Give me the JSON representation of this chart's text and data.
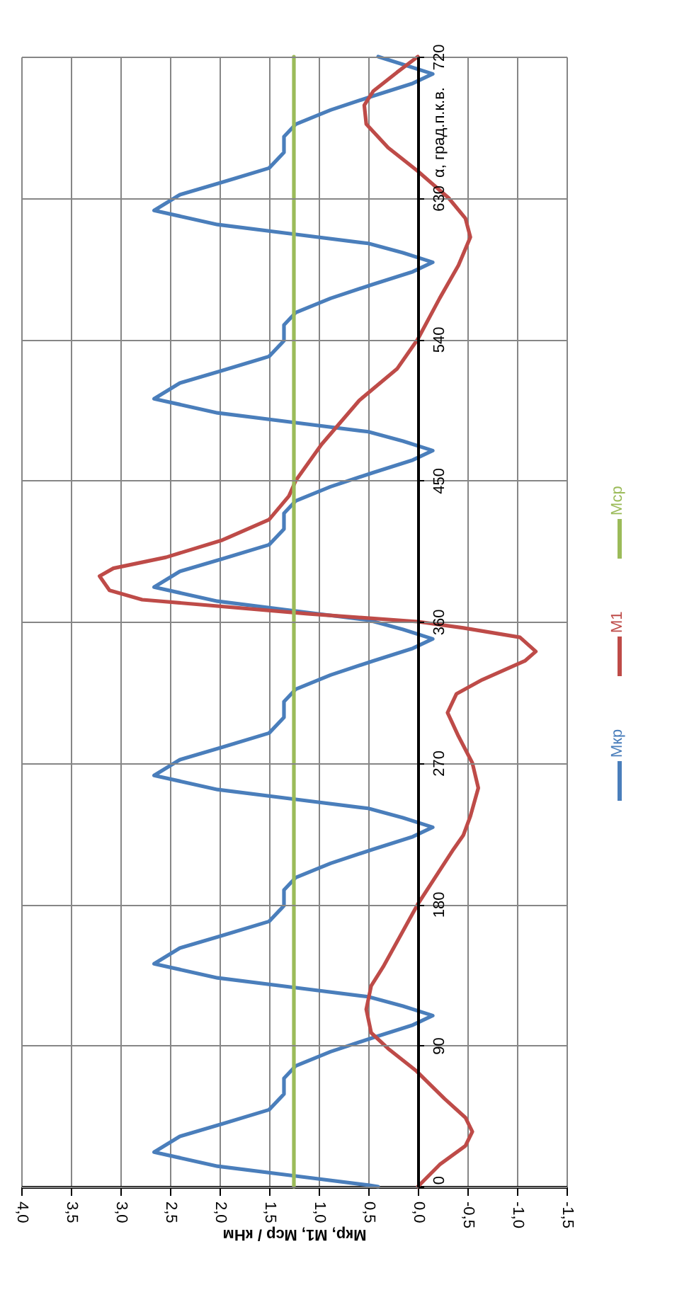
{
  "chart_data": {
    "type": "line",
    "orientation": "horizontal",
    "xlabel": "Мкр, М1, Мср / кНм",
    "ylabel": "α, град.п.к.в.",
    "xlim": [
      4.0,
      -1.5
    ],
    "xticks": [
      {
        "value": 4.0,
        "label": "4,0"
      },
      {
        "value": 3.5,
        "label": "3,5"
      },
      {
        "value": 3.0,
        "label": "3,0"
      },
      {
        "value": 2.5,
        "label": "2,5"
      },
      {
        "value": 2.0,
        "label": "2,0"
      },
      {
        "value": 1.5,
        "label": "1,5"
      },
      {
        "value": 1.0,
        "label": "1,0"
      },
      {
        "value": 0.5,
        "label": "0,5"
      },
      {
        "value": 0,
        "label": "0,0"
      },
      {
        "value": -0.5,
        "label": "-0,5"
      },
      {
        "value": -1.0,
        "label": "-1,0"
      },
      {
        "value": -1.5,
        "label": "-1,5"
      }
    ],
    "ylim": [
      0,
      720
    ],
    "yticks": [
      0,
      90,
      180,
      270,
      360,
      450,
      540,
      630,
      720
    ],
    "grid": true,
    "legend": "right",
    "line_style": "solid",
    "marker": "none",
    "series": [
      {
        "name": "Мкр",
        "color": "#4a7ebb",
        "x": [
          0,
          1,
          7,
          13,
          22,
          32,
          40,
          49,
          59,
          69,
          77,
          86,
          95,
          103,
          109,
          115,
          121,
          127,
          133,
          142,
          152,
          160,
          169,
          179,
          189,
          197,
          206,
          215,
          223,
          229,
          235,
          241,
          247,
          253,
          262,
          272,
          280,
          289,
          299,
          309,
          317,
          326,
          335,
          343,
          349,
          355,
          361,
          367,
          373,
          382,
          392,
          400,
          409,
          419,
          429,
          437,
          446,
          455,
          463,
          469,
          475,
          481,
          487,
          493,
          502,
          512,
          520,
          529,
          539,
          549,
          557,
          566,
          575,
          583,
          589,
          595,
          601,
          607,
          613,
          622,
          632,
          640,
          649,
          659,
          669,
          677,
          686,
          695,
          703,
          709,
          715,
          720
        ],
        "values": [
          0.4,
          0.5,
          1.26,
          2.02,
          2.66,
          2.4,
          1.97,
          1.5,
          1.35,
          1.35,
          1.23,
          0.88,
          0.45,
          0.05,
          -0.15,
          0.15,
          0.5,
          1.26,
          2.02,
          2.66,
          2.4,
          1.97,
          1.5,
          1.35,
          1.35,
          1.23,
          0.88,
          0.45,
          0.05,
          -0.15,
          0.15,
          0.5,
          1.26,
          2.02,
          2.66,
          2.4,
          1.97,
          1.5,
          1.35,
          1.35,
          1.23,
          0.88,
          0.45,
          0.05,
          -0.15,
          0.15,
          0.5,
          1.26,
          2.02,
          2.66,
          2.4,
          1.97,
          1.5,
          1.35,
          1.35,
          1.23,
          0.88,
          0.45,
          0.05,
          -0.15,
          0.15,
          0.5,
          1.26,
          2.02,
          2.66,
          2.4,
          1.97,
          1.5,
          1.35,
          1.35,
          1.23,
          0.88,
          0.45,
          0.05,
          -0.15,
          0.15,
          0.5,
          1.26,
          2.02,
          2.66,
          2.4,
          1.97,
          1.5,
          1.35,
          1.35,
          1.23,
          0.88,
          0.45,
          0.05,
          -0.15,
          0.15,
          0.4
        ]
      },
      {
        "name": "М1",
        "color": "#be4b48",
        "x": [
          0,
          14,
          26,
          35,
          44,
          56,
          74,
          88,
          98,
          113,
          128,
          140,
          180,
          215,
          224,
          236,
          254,
          270,
          287,
          302,
          314,
          323,
          335,
          341,
          350,
          356,
          360,
          365,
          374,
          380,
          389,
          394,
          401,
          412,
          425,
          440,
          450,
          473,
          501,
          521,
          540,
          566,
          587,
          605,
          617,
          630,
          647,
          662,
          677,
          689,
          698,
          710,
          720
        ],
        "values": [
          0,
          -0.22,
          -0.48,
          -0.55,
          -0.48,
          -0.27,
          0.02,
          0.3,
          0.47,
          0.52,
          0.47,
          0.35,
          0,
          -0.36,
          -0.46,
          -0.53,
          -0.61,
          -0.55,
          -0.41,
          -0.3,
          -0.39,
          -0.65,
          -1.08,
          -1.19,
          -1.03,
          -0.46,
          0,
          1.11,
          2.78,
          3.11,
          3.21,
          3.07,
          2.54,
          1.97,
          1.5,
          1.3,
          1.23,
          0.97,
          0.59,
          0.21,
          0,
          -0.22,
          -0.41,
          -0.53,
          -0.48,
          -0.31,
          0,
          0.3,
          0.52,
          0.54,
          0.45,
          0.21,
          0
        ]
      },
      {
        "name": "Мср",
        "color": "#9bbb59",
        "x": [
          0,
          720
        ],
        "values": [
          1.25,
          1.25
        ]
      }
    ]
  }
}
